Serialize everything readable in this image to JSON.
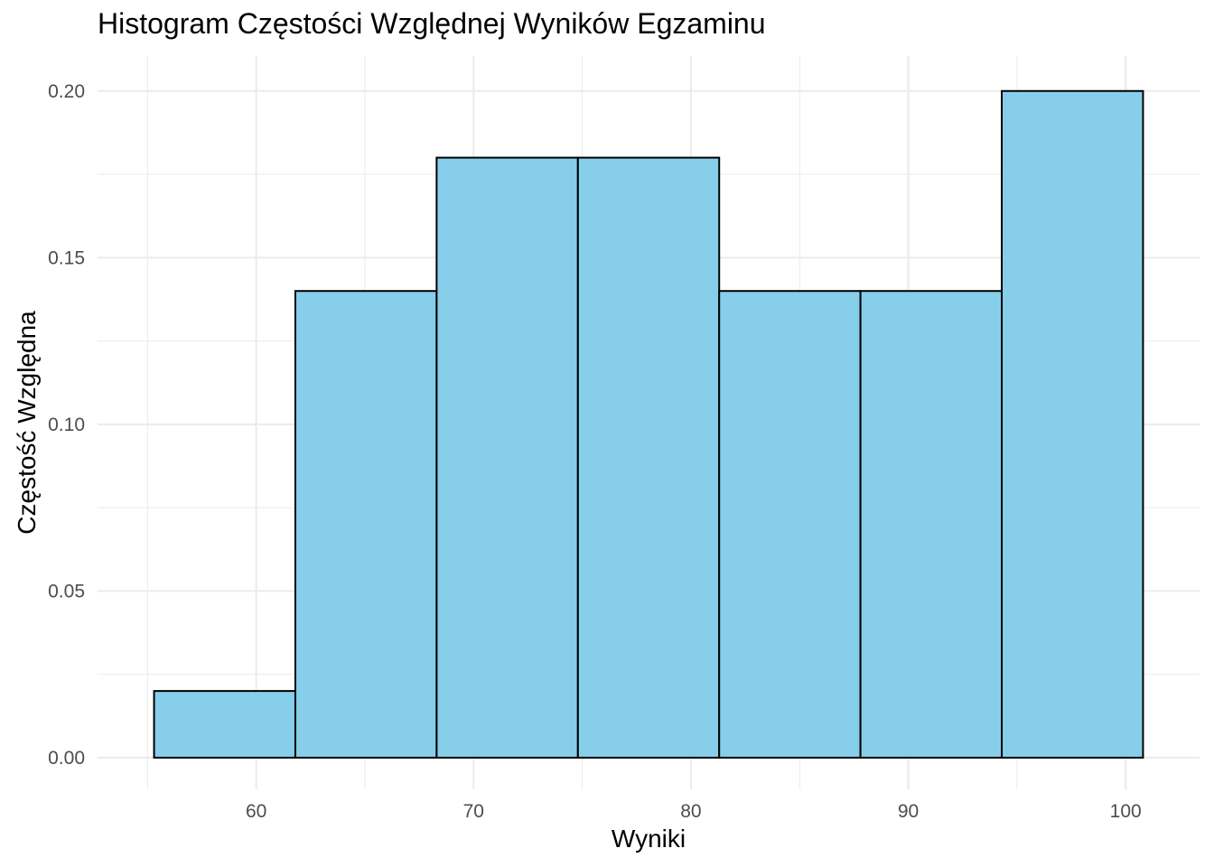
{
  "chart_data": {
    "type": "bar",
    "title": "Histogram Częstości Względnej Wyników Egzaminu",
    "xlabel": "Wyniki",
    "ylabel": "Częstość Względna",
    "bins": [
      {
        "from": 55.3,
        "to": 61.8,
        "value": 0.02
      },
      {
        "from": 61.8,
        "to": 68.3,
        "value": 0.14
      },
      {
        "from": 68.3,
        "to": 74.8,
        "value": 0.18
      },
      {
        "from": 74.8,
        "to": 81.3,
        "value": 0.18
      },
      {
        "from": 81.3,
        "to": 87.8,
        "value": 0.14
      },
      {
        "from": 87.8,
        "to": 94.3,
        "value": 0.14
      },
      {
        "from": 94.3,
        "to": 100.8,
        "value": 0.2
      }
    ],
    "xlim": [
      52.7,
      103.4
    ],
    "ylim": [
      -0.0095,
      0.2105
    ],
    "x_ticks": [
      "60",
      "70",
      "80",
      "90",
      "100"
    ],
    "x_tick_values": [
      60,
      70,
      80,
      90,
      100
    ],
    "x_minor_values": [
      55,
      65,
      75,
      85,
      95
    ],
    "y_ticks": [
      "0.00",
      "0.05",
      "0.10",
      "0.15",
      "0.20"
    ],
    "y_tick_values": [
      0,
      0.05,
      0.1,
      0.15,
      0.2
    ],
    "y_minor_values": [
      0.025,
      0.075,
      0.125,
      0.175
    ],
    "grid": true,
    "colors": {
      "fill": "#87CEEB",
      "outline": "#000000",
      "grid": "#EBEBEB",
      "tick_text": "#4D4D4D"
    }
  }
}
